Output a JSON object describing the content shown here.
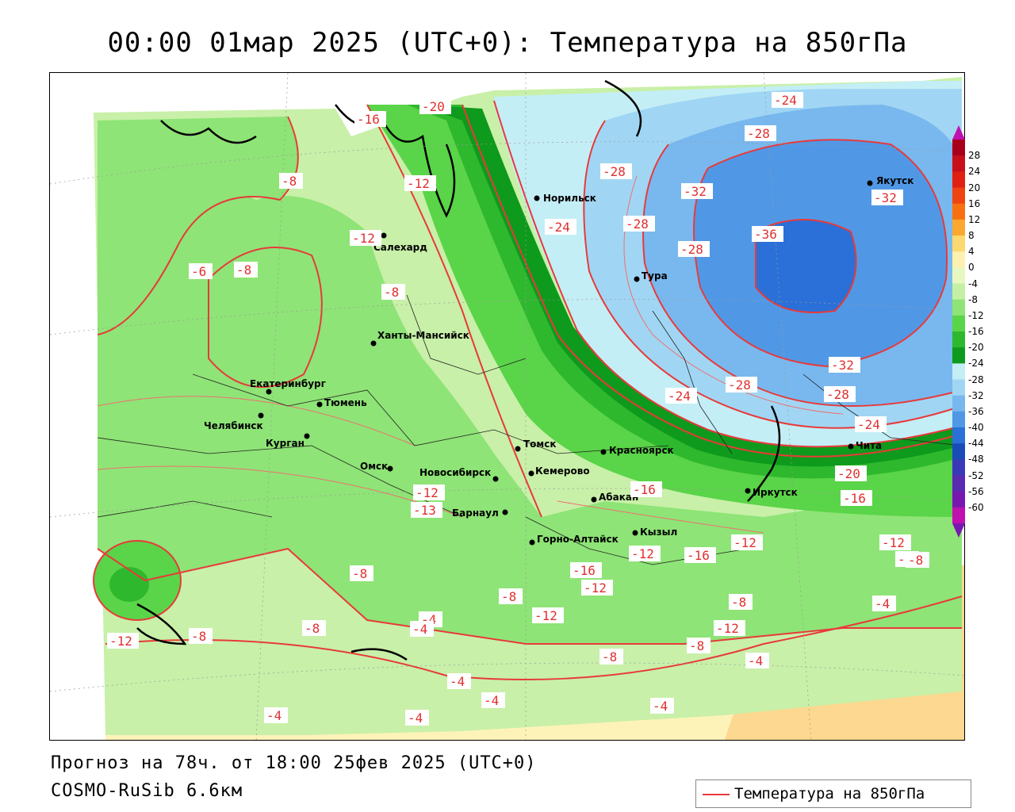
{
  "title": "00:00 01мар 2025 (UTC+0): Температура на 850гПа",
  "footer": {
    "forecast": "Прогноз на 78ч. от 18:00 25фев 2025 (UTC+0)",
    "model": "COSMO-RuSib 6.6км"
  },
  "legend": {
    "label": "Температура на 850гПа",
    "color": "#e83a3a"
  },
  "colorbar": {
    "ticks": [
      "28",
      "24",
      "20",
      "16",
      "12",
      "8",
      "4",
      "0",
      "-4",
      "-8",
      "-12",
      "-16",
      "-20",
      "-24",
      "-28",
      "-32",
      "-36",
      "-40",
      "-44",
      "-48",
      "-52",
      "-56",
      "-60"
    ],
    "colors": [
      "#a8001a",
      "#c8101a",
      "#e02010",
      "#f04410",
      "#f87010",
      "#fca830",
      "#fcd870",
      "#fdf0b0",
      "#e6f7c0",
      "#c4f0a4",
      "#8ee476",
      "#5ad448",
      "#2eb82e",
      "#0e9a1c",
      "#c4eef6",
      "#a0d6f4",
      "#78b8ee",
      "#5098e6",
      "#2a70d8",
      "#1a4cb8",
      "#3a3ab8",
      "#5a2ab0",
      "#7818b0",
      "#c010b0"
    ]
  },
  "cities": [
    {
      "name": "Норильск"
    },
    {
      "name": "Якутск"
    },
    {
      "name": "Салехард"
    },
    {
      "name": "Тура"
    },
    {
      "name": "Ханты-Мансийск"
    },
    {
      "name": "Екатеринбург"
    },
    {
      "name": "Тюмень"
    },
    {
      "name": "Челябинск"
    },
    {
      "name": "Курган"
    },
    {
      "name": "Томск"
    },
    {
      "name": "Красноярск"
    },
    {
      "name": "Омск"
    },
    {
      "name": "Новосибирск"
    },
    {
      "name": "Кемерово"
    },
    {
      "name": "Абакан"
    },
    {
      "name": "Иркутск"
    },
    {
      "name": "Чита"
    },
    {
      "name": "Барнаул"
    },
    {
      "name": "Горно-Алтайск"
    },
    {
      "name": "Кызыл"
    }
  ],
  "contour_labels": [
    {
      "value": "-20"
    },
    {
      "value": "-16"
    },
    {
      "value": "-24"
    },
    {
      "value": "-28"
    },
    {
      "value": "-28"
    },
    {
      "value": "-32"
    },
    {
      "value": "-32"
    },
    {
      "value": "-12"
    },
    {
      "value": "-8"
    },
    {
      "value": "-12"
    },
    {
      "value": "-24"
    },
    {
      "value": "-28"
    },
    {
      "value": "-36"
    },
    {
      "value": "-28"
    },
    {
      "value": "-6"
    },
    {
      "value": "-8"
    },
    {
      "value": "-8"
    },
    {
      "value": "-28"
    },
    {
      "value": "-32"
    },
    {
      "value": "-24"
    },
    {
      "value": "-28"
    },
    {
      "value": "-24"
    },
    {
      "value": "-12"
    },
    {
      "value": "-13"
    },
    {
      "value": "-16"
    },
    {
      "value": "-20"
    },
    {
      "value": "-16"
    },
    {
      "value": "-12"
    },
    {
      "value": "-12"
    },
    {
      "value": "-16"
    },
    {
      "value": "-8"
    },
    {
      "value": "-12"
    },
    {
      "value": "-16"
    },
    {
      "value": "-12"
    },
    {
      "value": "-8"
    },
    {
      "value": "-12"
    },
    {
      "value": "-8"
    },
    {
      "value": "-8"
    },
    {
      "value": "-4"
    },
    {
      "value": "-12"
    },
    {
      "value": "-8"
    },
    {
      "value": "-8"
    },
    {
      "value": "-4"
    },
    {
      "value": "-8"
    },
    {
      "value": "-12"
    },
    {
      "value": "-8"
    },
    {
      "value": "-4"
    },
    {
      "value": "-4"
    },
    {
      "value": "-4"
    },
    {
      "value": "-4"
    },
    {
      "value": "-4"
    },
    {
      "value": "-8"
    },
    {
      "value": "-4"
    },
    {
      "value": "-4"
    }
  ]
}
